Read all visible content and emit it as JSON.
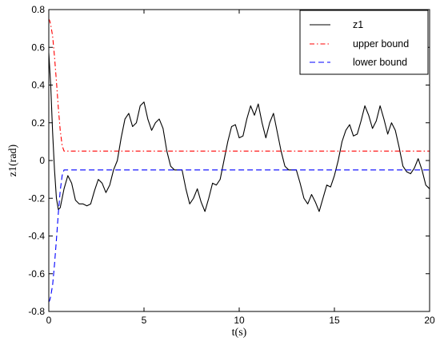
{
  "chart_data": {
    "type": "line",
    "xlabel": "t(s)",
    "ylabel": "z1(rad)",
    "xlim": [
      0,
      20
    ],
    "ylim": [
      -0.8,
      0.8
    ],
    "xticks": [
      0,
      5,
      10,
      15,
      20
    ],
    "xtick_labels": [
      "0",
      "5",
      "10",
      "15",
      "20"
    ],
    "yticks": [
      -0.8,
      -0.6,
      -0.4,
      -0.2,
      0,
      0.2,
      0.4,
      0.6,
      0.8
    ],
    "ytick_labels": [
      "-0.8",
      "-0.6",
      "-0.4",
      "-0.2",
      "0",
      "0.2",
      "0.4",
      "0.6",
      "0.8"
    ],
    "grid": false,
    "legend_position": "top-right",
    "series": [
      {
        "name": "z1",
        "color": "#000000",
        "style": "solid",
        "x": [
          0,
          0.1,
          0.2,
          0.3,
          0.4,
          0.5,
          0.6,
          0.8,
          1.0,
          1.2,
          1.4,
          1.6,
          1.8,
          2.0,
          2.2,
          2.4,
          2.6,
          2.8,
          3.0,
          3.2,
          3.4,
          3.6,
          3.8,
          4.0,
          4.2,
          4.4,
          4.6,
          4.8,
          5.0,
          5.2,
          5.4,
          5.6,
          5.8,
          6.0,
          6.2,
          6.4,
          6.6,
          6.8,
          7.0,
          7.2,
          7.4,
          7.6,
          7.8,
          8.0,
          8.2,
          8.4,
          8.6,
          8.8,
          9.0,
          9.2,
          9.4,
          9.6,
          9.8,
          10.0,
          10.2,
          10.4,
          10.6,
          10.8,
          11.0,
          11.2,
          11.4,
          11.6,
          11.8,
          12.0,
          12.2,
          12.4,
          12.6,
          12.8,
          13.0,
          13.2,
          13.4,
          13.6,
          13.8,
          14.0,
          14.2,
          14.4,
          14.6,
          14.8,
          15.0,
          15.2,
          15.4,
          15.6,
          15.8,
          16.0,
          16.2,
          16.4,
          16.6,
          16.8,
          17.0,
          17.2,
          17.4,
          17.6,
          17.8,
          18.0,
          18.2,
          18.4,
          18.6,
          18.8,
          19.0,
          19.2,
          19.4,
          19.6,
          19.8,
          20.0
        ],
        "y": [
          0.57,
          0.4,
          0.15,
          -0.05,
          -0.2,
          -0.26,
          -0.25,
          -0.15,
          -0.08,
          -0.12,
          -0.21,
          -0.23,
          -0.23,
          -0.24,
          -0.23,
          -0.16,
          -0.1,
          -0.12,
          -0.17,
          -0.13,
          -0.05,
          0.0,
          0.12,
          0.22,
          0.25,
          0.18,
          0.2,
          0.29,
          0.31,
          0.22,
          0.16,
          0.2,
          0.22,
          0.17,
          0.05,
          -0.03,
          -0.05,
          -0.05,
          -0.05,
          -0.15,
          -0.23,
          -0.2,
          -0.15,
          -0.22,
          -0.27,
          -0.2,
          -0.12,
          -0.13,
          -0.1,
          0.0,
          0.1,
          0.18,
          0.19,
          0.12,
          0.13,
          0.22,
          0.29,
          0.24,
          0.3,
          0.2,
          0.12,
          0.2,
          0.25,
          0.15,
          0.05,
          -0.03,
          -0.05,
          -0.05,
          -0.05,
          -0.12,
          -0.2,
          -0.23,
          -0.18,
          -0.22,
          -0.27,
          -0.2,
          -0.13,
          -0.14,
          -0.08,
          0.0,
          0.1,
          0.16,
          0.19,
          0.13,
          0.14,
          0.21,
          0.29,
          0.24,
          0.17,
          0.21,
          0.29,
          0.22,
          0.14,
          0.2,
          0.16,
          0.07,
          -0.03,
          -0.06,
          -0.07,
          -0.04,
          0.01,
          -0.05,
          -0.13,
          -0.15
        ]
      },
      {
        "name": "upper bound",
        "color": "#ff0000",
        "style": "dash-dot",
        "x": [
          0,
          0.05,
          0.1,
          0.2,
          0.3,
          0.4,
          0.5,
          0.6,
          0.7,
          0.8,
          1.0,
          20.0
        ],
        "y": [
          0.75,
          0.74,
          0.72,
          0.66,
          0.55,
          0.42,
          0.28,
          0.16,
          0.08,
          0.05,
          0.05,
          0.05
        ]
      },
      {
        "name": "lower bound",
        "color": "#0000ff",
        "style": "dashed",
        "x": [
          0,
          0.05,
          0.1,
          0.2,
          0.3,
          0.4,
          0.5,
          0.6,
          0.7,
          0.8,
          1.0,
          20.0
        ],
        "y": [
          -0.75,
          -0.74,
          -0.72,
          -0.66,
          -0.55,
          -0.42,
          -0.28,
          -0.16,
          -0.08,
          -0.05,
          -0.05,
          -0.05
        ]
      }
    ]
  }
}
